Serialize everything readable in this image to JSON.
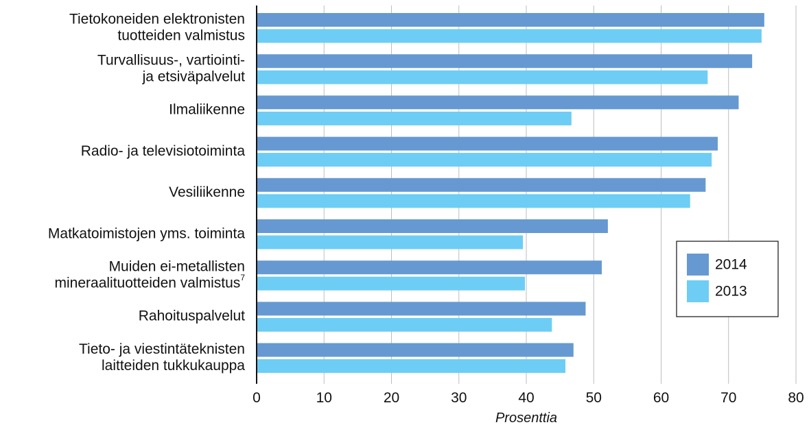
{
  "chart_data": {
    "type": "bar",
    "orientation": "horizontal",
    "categories": [
      [
        "Tietokoneiden elektronisten",
        "tuotteiden valmistus"
      ],
      [
        "Turvallisuus-, vartiointi-",
        "ja etsiväpalvelut"
      ],
      [
        "Ilmaliikenne"
      ],
      [
        "Radio- ja televisiotoiminta"
      ],
      [
        "Vesiliikenne"
      ],
      [
        "Matkatoimistojen yms. toiminta"
      ],
      [
        "Muiden ei-metallisten",
        "mineraalituotteiden valmistus"
      ],
      [
        "Rahoituspalvelut"
      ],
      [
        "Tieto- ja viestintäteknisten",
        "laitteiden tukkukauppa"
      ]
    ],
    "category_superscripts": [
      "",
      "",
      "",
      "",
      "",
      "",
      "7",
      "",
      ""
    ],
    "series": [
      {
        "name": "2014",
        "color": "#6699d2",
        "values": [
          75.3,
          73.5,
          71.5,
          68.4,
          66.6,
          52.1,
          51.2,
          48.8,
          47.0
        ]
      },
      {
        "name": "2013",
        "color": "#6dcdf5",
        "values": [
          74.9,
          66.9,
          46.7,
          67.5,
          64.3,
          39.5,
          39.8,
          43.8,
          45.8
        ]
      }
    ],
    "xlim": [
      0,
      80
    ],
    "xticks": [
      "0",
      "10",
      "20",
      "30",
      "40",
      "50",
      "60",
      "70",
      "80"
    ],
    "xlabel": "Prosenttia",
    "grid": "vertical",
    "legend_position": "right"
  }
}
